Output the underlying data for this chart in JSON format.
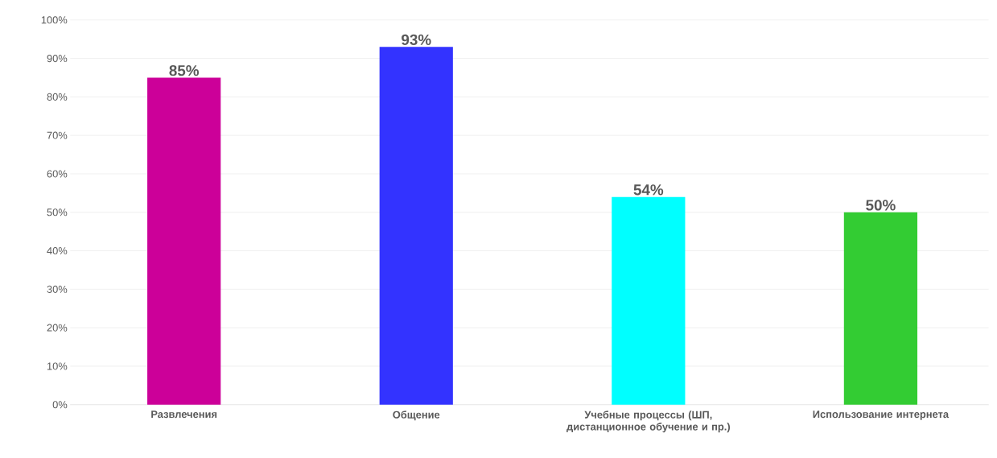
{
  "chart_data": {
    "type": "bar",
    "categories": [
      "Развлечения",
      "Общение",
      "Учебные процессы (ШП, дистанционное обучение и пр.)",
      "Использование интернета"
    ],
    "values": [
      85,
      93,
      54,
      50
    ],
    "colors": [
      "#cc0099",
      "#3333ff",
      "#00ffff",
      "#33cc33"
    ],
    "value_labels": [
      "85%",
      "93%",
      "54%",
      "50%"
    ],
    "ylim": [
      0,
      100
    ],
    "yticks": [
      {
        "value": 0,
        "label": "0%"
      },
      {
        "value": 10,
        "label": "10%"
      },
      {
        "value": 20,
        "label": "20%"
      },
      {
        "value": 30,
        "label": "30%"
      },
      {
        "value": 40,
        "label": "40%"
      },
      {
        "value": 50,
        "label": "50%"
      },
      {
        "value": 60,
        "label": "60%"
      },
      {
        "value": 70,
        "label": "70%"
      },
      {
        "value": 80,
        "label": "80%"
      },
      {
        "value": 90,
        "label": "90%"
      },
      {
        "value": 100,
        "label": "100%"
      }
    ],
    "grid": "y"
  }
}
